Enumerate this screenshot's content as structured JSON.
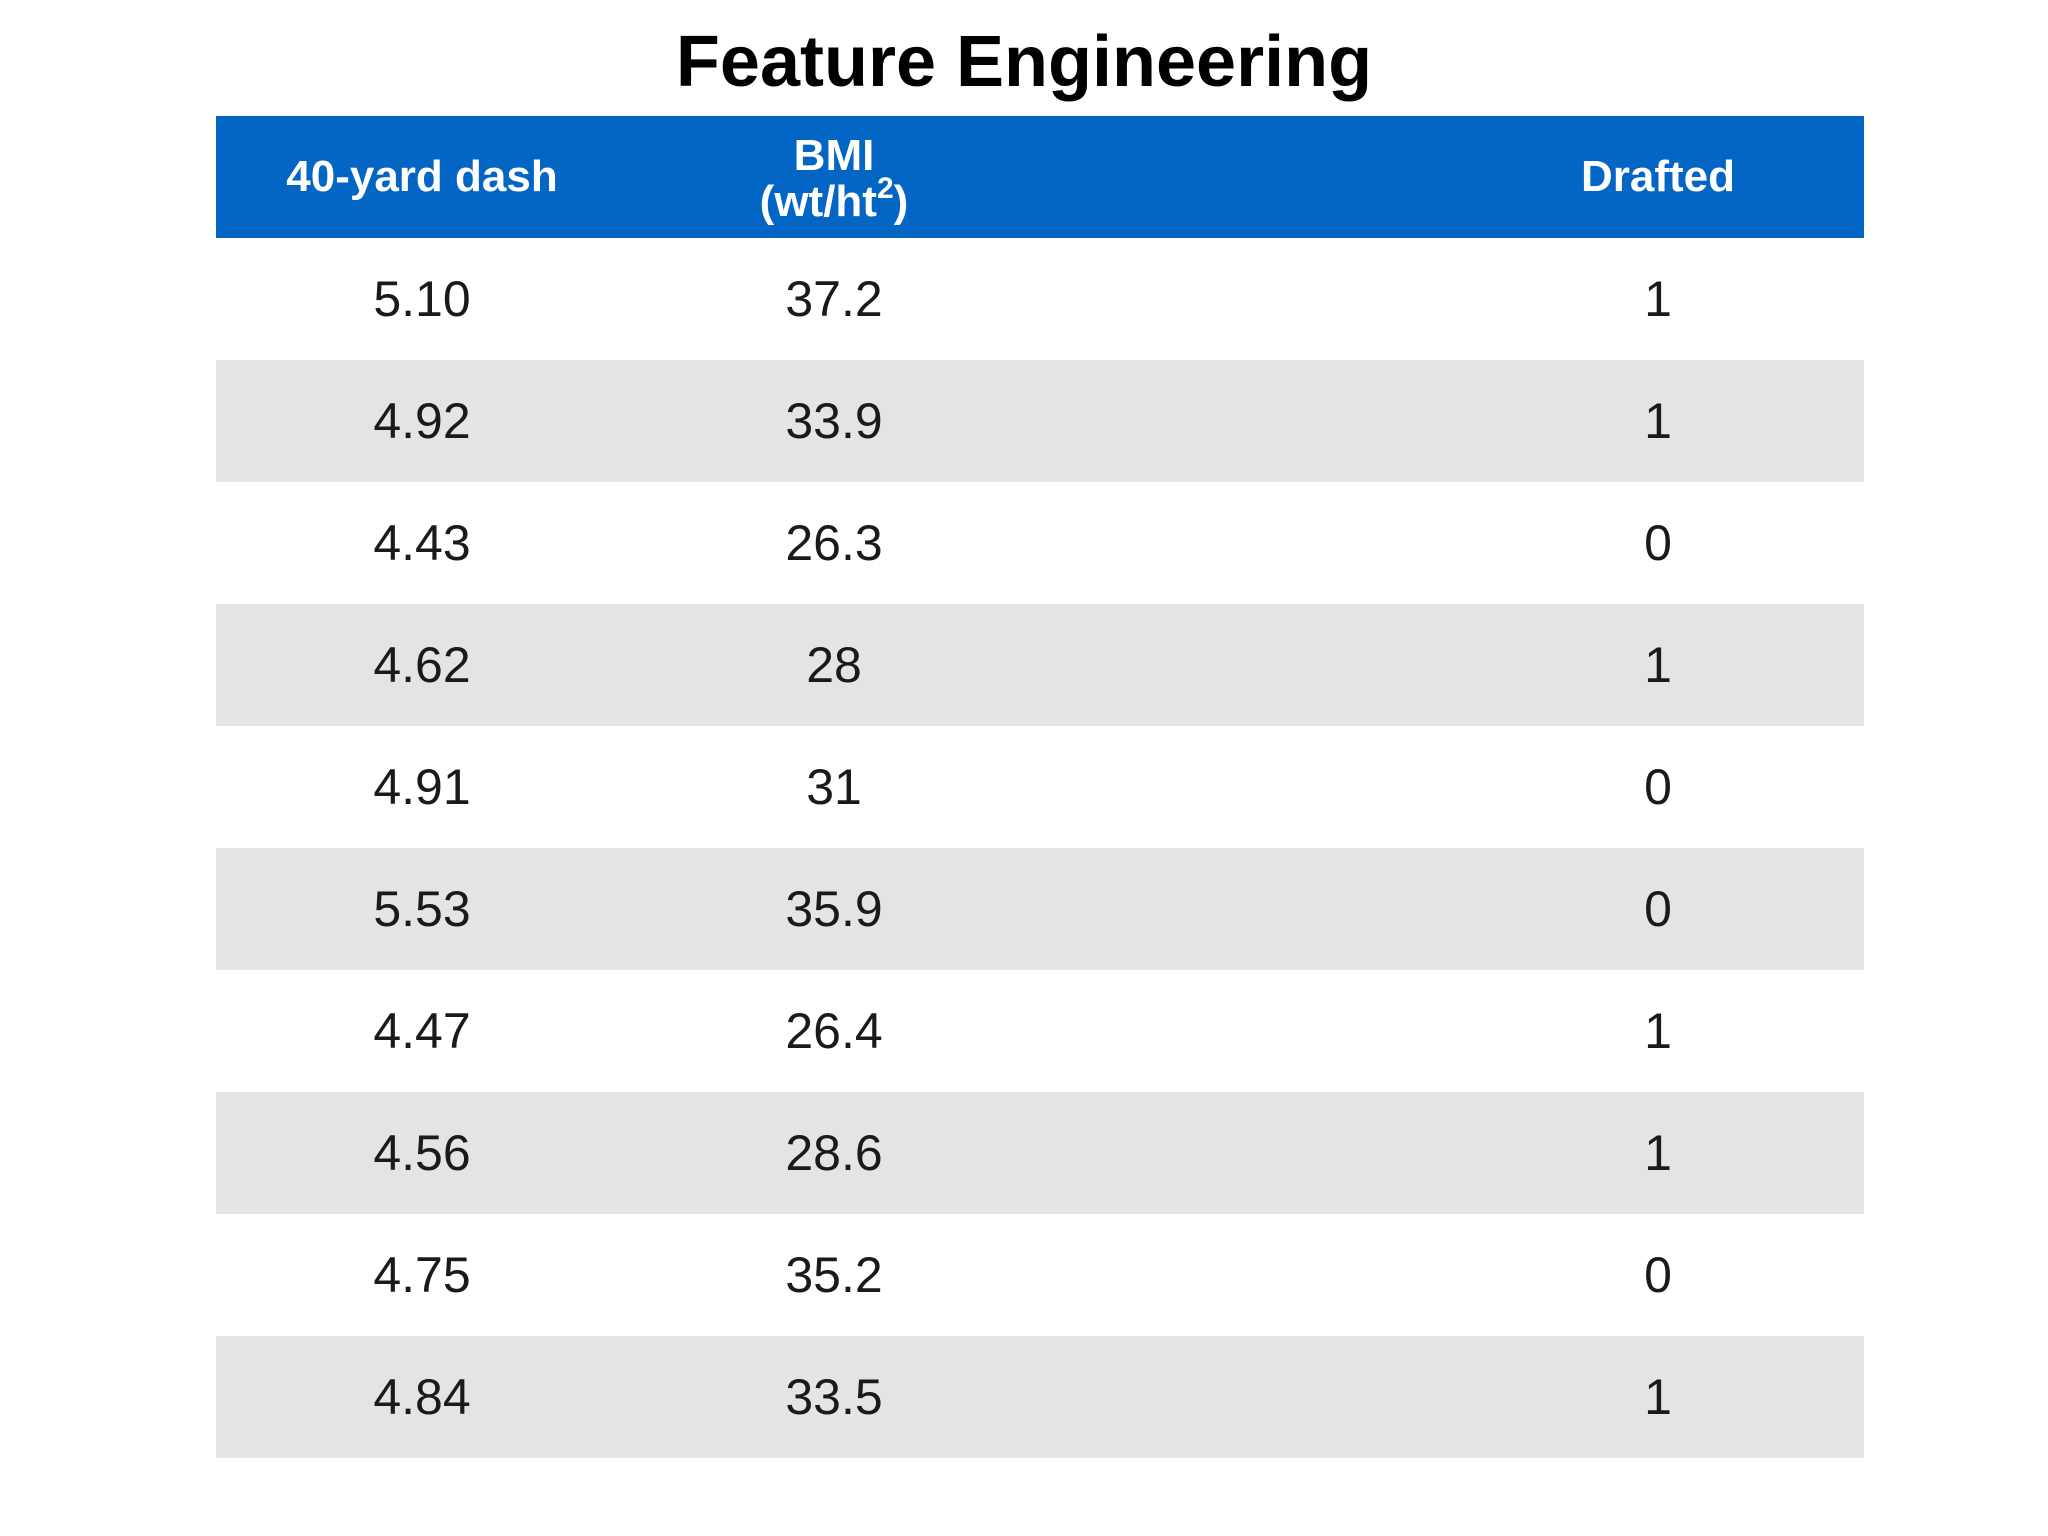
{
  "slide": {
    "title": "Feature Engineering"
  },
  "table": {
    "headers": {
      "dash": "40-yard dash",
      "bmi_line1": "BMI",
      "bmi_line2_pre": "(wt/ht",
      "bmi_sup": "2",
      "bmi_line2_post": ")",
      "drafted": "Drafted"
    },
    "rows": [
      {
        "dash": "5.10",
        "bmi": "37.2",
        "drafted": "1"
      },
      {
        "dash": "4.92",
        "bmi": "33.9",
        "drafted": "1"
      },
      {
        "dash": "4.43",
        "bmi": "26.3",
        "drafted": "0"
      },
      {
        "dash": "4.62",
        "bmi": "28",
        "drafted": "1"
      },
      {
        "dash": "4.91",
        "bmi": "31",
        "drafted": "0"
      },
      {
        "dash": "5.53",
        "bmi": "35.9",
        "drafted": "0"
      },
      {
        "dash": "4.47",
        "bmi": "26.4",
        "drafted": "1"
      },
      {
        "dash": "4.56",
        "bmi": "28.6",
        "drafted": "1"
      },
      {
        "dash": "4.75",
        "bmi": "35.2",
        "drafted": "0"
      },
      {
        "dash": "4.84",
        "bmi": "33.5",
        "drafted": "1"
      }
    ]
  },
  "colors": {
    "header_bg": "#0366c4",
    "header_text": "#ffffff",
    "alt_row_bg": "#e4e4e6"
  }
}
